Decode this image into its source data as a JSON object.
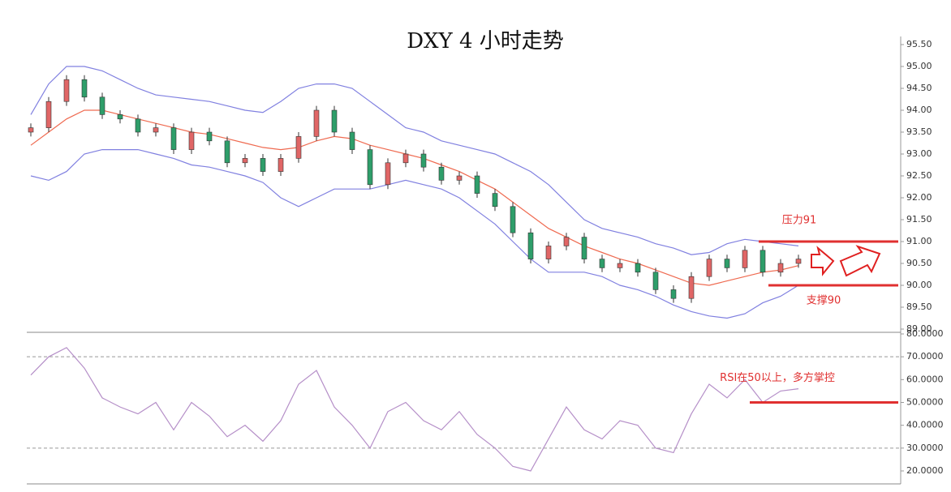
{
  "chart_data": [
    {
      "type": "candlestick",
      "title": "DXY 4 小时走势",
      "open": [
        93.5,
        93.6,
        94.2,
        94.7,
        94.3,
        93.9,
        93.8,
        93.5,
        93.6,
        93.1,
        93.5,
        93.3,
        92.8,
        92.9,
        92.6,
        92.9,
        93.4,
        94.0,
        93.5,
        93.1,
        92.3,
        92.8,
        93.0,
        92.7,
        92.4,
        92.5,
        92.1,
        91.8,
        91.2,
        90.6,
        90.9,
        91.1,
        90.6,
        90.4,
        90.5,
        90.3,
        89.9,
        89.7,
        90.2,
        90.6,
        90.4,
        90.8,
        90.3,
        90.5
      ],
      "high": [
        93.7,
        94.3,
        94.8,
        94.8,
        94.4,
        94.0,
        93.9,
        93.7,
        93.7,
        93.6,
        93.6,
        93.4,
        93.0,
        93.0,
        93.0,
        93.5,
        94.1,
        94.1,
        93.6,
        93.2,
        92.9,
        93.1,
        93.1,
        92.8,
        92.6,
        92.6,
        92.2,
        91.9,
        91.3,
        91.0,
        91.2,
        91.2,
        90.7,
        90.6,
        90.6,
        90.4,
        90.0,
        90.3,
        90.7,
        90.7,
        90.9,
        90.9,
        90.6,
        90.7
      ],
      "low": [
        93.4,
        93.5,
        94.1,
        94.2,
        93.8,
        93.7,
        93.4,
        93.4,
        93.0,
        93.0,
        93.2,
        92.7,
        92.7,
        92.5,
        92.5,
        92.8,
        93.3,
        93.4,
        93.0,
        92.2,
        92.2,
        92.7,
        92.6,
        92.3,
        92.3,
        92.0,
        91.7,
        91.1,
        90.5,
        90.5,
        90.8,
        90.5,
        90.3,
        90.3,
        90.2,
        89.8,
        89.6,
        89.6,
        90.1,
        90.3,
        90.3,
        90.2,
        90.2,
        90.4
      ],
      "close": [
        93.6,
        94.2,
        94.7,
        94.3,
        93.9,
        93.8,
        93.5,
        93.6,
        93.1,
        93.5,
        93.3,
        92.8,
        92.9,
        92.6,
        92.9,
        93.4,
        94.0,
        93.5,
        93.1,
        92.3,
        92.8,
        93.0,
        92.7,
        92.4,
        92.5,
        92.1,
        91.8,
        91.2,
        90.6,
        90.9,
        91.1,
        90.6,
        90.4,
        90.5,
        90.3,
        89.9,
        89.7,
        90.2,
        90.6,
        90.4,
        90.8,
        90.3,
        90.5,
        90.6
      ],
      "up_color": "#e06666",
      "down_color": "#2e9e6a",
      "bands": [
        {
          "color": "#8080e0",
          "values": [
            93.9,
            94.6,
            95.0,
            95.0,
            94.9,
            94.7,
            94.5,
            94.35,
            94.3,
            94.25,
            94.2,
            94.1,
            94.0,
            93.95,
            94.2,
            94.5,
            94.6,
            94.6,
            94.5,
            94.2,
            93.9,
            93.6,
            93.5,
            93.3,
            93.2,
            93.1,
            93.0,
            92.8,
            92.6,
            92.3,
            91.9,
            91.5,
            91.3,
            91.2,
            91.1,
            90.95,
            90.85,
            90.7,
            90.75,
            90.95,
            91.05,
            91.0,
            90.95,
            90.9
          ]
        },
        {
          "color": "#ef6a50",
          "values": [
            93.2,
            93.5,
            93.8,
            94.0,
            94.0,
            93.9,
            93.8,
            93.7,
            93.6,
            93.5,
            93.45,
            93.35,
            93.25,
            93.15,
            93.1,
            93.15,
            93.3,
            93.4,
            93.35,
            93.2,
            93.1,
            93.0,
            92.9,
            92.75,
            92.6,
            92.4,
            92.2,
            91.9,
            91.6,
            91.3,
            91.1,
            90.9,
            90.75,
            90.6,
            90.5,
            90.35,
            90.2,
            90.05,
            90.0,
            90.1,
            90.2,
            90.3,
            90.35,
            90.45
          ]
        },
        {
          "color": "#8080e0",
          "values": [
            92.5,
            92.4,
            92.6,
            93.0,
            93.1,
            93.1,
            93.1,
            93.0,
            92.9,
            92.75,
            92.7,
            92.6,
            92.5,
            92.35,
            92.0,
            91.8,
            92.0,
            92.2,
            92.2,
            92.2,
            92.3,
            92.4,
            92.3,
            92.2,
            92.0,
            91.7,
            91.4,
            91.0,
            90.6,
            90.3,
            90.3,
            90.3,
            90.2,
            90.0,
            89.9,
            89.75,
            89.55,
            89.4,
            89.3,
            89.25,
            89.35,
            89.6,
            89.75,
            90.0
          ]
        }
      ],
      "ylim": [
        89,
        95.5
      ],
      "yticks": [
        {
          "value": 89,
          "label": "89.00"
        },
        {
          "value": 89.5,
          "label": "89.50"
        },
        {
          "value": 90,
          "label": "90.00"
        },
        {
          "value": 90.5,
          "label": "90.50"
        },
        {
          "value": 91,
          "label": "91.00"
        },
        {
          "value": 91.5,
          "label": "91.50"
        },
        {
          "value": 92,
          "label": "92.00"
        },
        {
          "value": 92.5,
          "label": "92.50"
        },
        {
          "value": 93,
          "label": "93.00"
        },
        {
          "value": 93.5,
          "label": "93.50"
        },
        {
          "value": 94,
          "label": "94.00"
        },
        {
          "value": 94.5,
          "label": "94.50"
        },
        {
          "value": 95,
          "label": "95.00"
        },
        {
          "value": 95.5,
          "label": "95.50"
        }
      ],
      "annotations": [
        {
          "label": "压力91",
          "value": 91,
          "color": "#e03030"
        },
        {
          "label": "支撑90",
          "value": 90,
          "color": "#e03030"
        }
      ]
    },
    {
      "type": "line",
      "series": [
        {
          "color": "#b58fc8",
          "values": [
            62,
            70,
            74,
            65,
            52,
            48,
            45,
            50,
            38,
            50,
            44,
            35,
            40,
            33,
            42,
            58,
            64,
            48,
            40,
            30,
            46,
            50,
            42,
            38,
            46,
            36,
            30,
            22,
            20,
            34,
            48,
            38,
            34,
            42,
            40,
            30,
            28,
            45,
            58,
            52,
            60,
            50,
            55,
            56
          ]
        }
      ],
      "ylim": [
        15,
        80
      ],
      "yticks": [
        {
          "value": 20,
          "label": "20.0000"
        },
        {
          "value": 30,
          "label": "30.0000"
        },
        {
          "value": 40,
          "label": "40.0000"
        },
        {
          "value": 50,
          "label": "50.0000"
        },
        {
          "value": 60,
          "label": "60.0000"
        },
        {
          "value": 70,
          "label": "70.0000"
        },
        {
          "value": 80,
          "label": "80.0000"
        }
      ],
      "reference_lines": [
        70,
        30
      ],
      "annotations": [
        {
          "label": "RSI在50以上，多方掌控",
          "value": 50,
          "color": "#e03030"
        }
      ]
    }
  ]
}
